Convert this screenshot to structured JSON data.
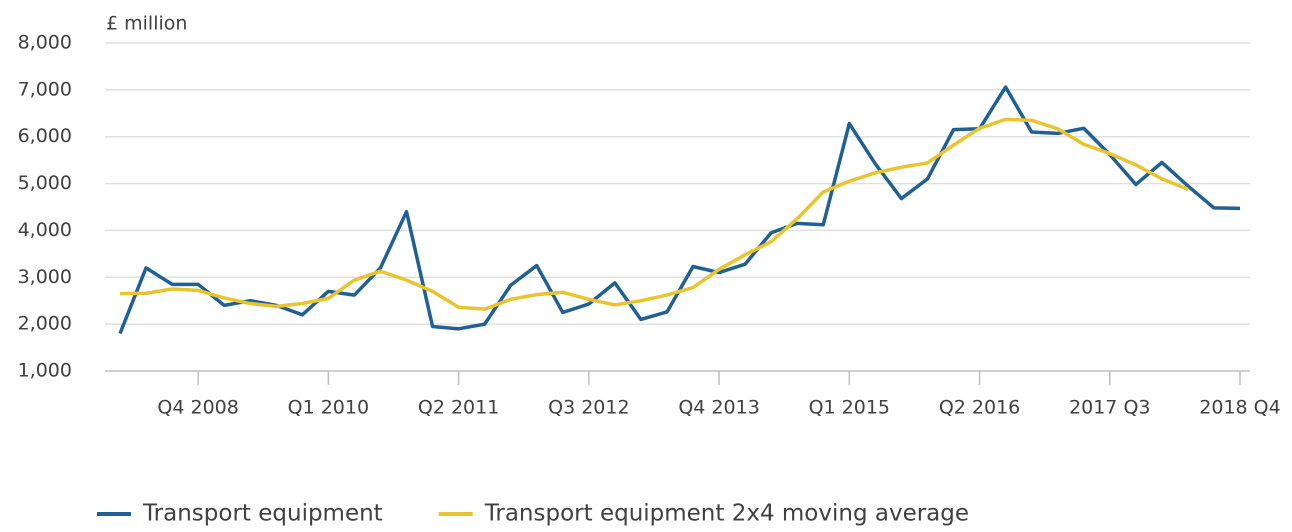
{
  "chart_data": {
    "type": "line",
    "y_label": "£ million",
    "categories": [
      null,
      null,
      null,
      "Q4 2008",
      null,
      null,
      null,
      null,
      "Q1 2010",
      null,
      null,
      null,
      null,
      "Q2 2011",
      null,
      null,
      null,
      null,
      "Q3 2012",
      null,
      null,
      null,
      null,
      "Q4 2013",
      null,
      null,
      null,
      null,
      "Q1 2015",
      null,
      null,
      null,
      null,
      "Q2 2016",
      null,
      null,
      null,
      null,
      "2017 Q3",
      null,
      null,
      null,
      null,
      "2018 Q4"
    ],
    "series": [
      {
        "name": "Transport equipment",
        "color": "#206095",
        "values": [
          1800,
          3200,
          2850,
          2850,
          2400,
          2500,
          2400,
          2200,
          2700,
          2620,
          3200,
          4400,
          1950,
          1900,
          2000,
          2830,
          3250,
          2250,
          2430,
          2880,
          2100,
          2260,
          3230,
          3100,
          3280,
          3950,
          4150,
          4120,
          6280,
          5420,
          4680,
          5100,
          6150,
          6170,
          7060,
          6100,
          6070,
          6180,
          5620,
          4980,
          5450,
          4950,
          4480,
          4470
        ]
      },
      {
        "name": "Transport equipment 2x4 moving average",
        "color": "#e8c42e",
        "values": [
          2650,
          2660,
          2750,
          2720,
          2560,
          2440,
          2380,
          2440,
          2550,
          2940,
          3130,
          2940,
          2700,
          2360,
          2320,
          2530,
          2630,
          2680,
          2530,
          2410,
          2500,
          2620,
          2780,
          3170,
          3480,
          3760,
          4250,
          4820,
          5050,
          5230,
          5350,
          5440,
          5820,
          6180,
          6370,
          6350,
          6170,
          5840,
          5640,
          5400,
          5100,
          4880,
          null,
          null
        ]
      }
    ],
    "ylim": [
      1000,
      8000
    ],
    "yticks": [
      {
        "value": 1000,
        "label": "1,000"
      },
      {
        "value": 2000,
        "label": "2,000"
      },
      {
        "value": 3000,
        "label": "3,000"
      },
      {
        "value": 4000,
        "label": "4,000"
      },
      {
        "value": 5000,
        "label": "5,000"
      },
      {
        "value": 6000,
        "label": "6,000"
      },
      {
        "value": 7000,
        "label": "7,000"
      },
      {
        "value": 8000,
        "label": "8,000"
      }
    ],
    "grid": true,
    "legend": "bottom"
  }
}
